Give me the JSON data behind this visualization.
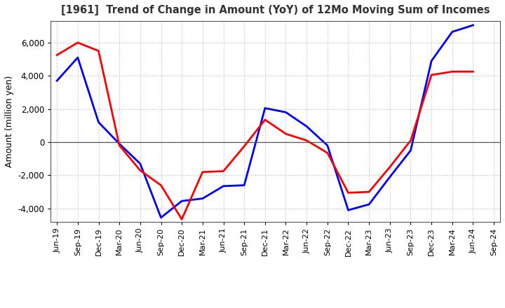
{
  "title": "[1961]  Trend of Change in Amount (YoY) of 12Mo Moving Sum of Incomes",
  "ylabel": "Amount (million yen)",
  "x_labels": [
    "Jun-19",
    "Sep-19",
    "Dec-19",
    "Mar-20",
    "Jun-20",
    "Sep-20",
    "Dec-20",
    "Mar-21",
    "Jun-21",
    "Sep-21",
    "Dec-21",
    "Mar-22",
    "Jun-22",
    "Sep-22",
    "Dec-22",
    "Mar-23",
    "Jun-23",
    "Sep-23",
    "Dec-23",
    "Mar-24",
    "Jun-24",
    "Sep-24"
  ],
  "ordinary_income": [
    3700,
    5100,
    1200,
    -100,
    -1300,
    -4550,
    -3550,
    -3400,
    -2650,
    -2600,
    2050,
    1800,
    950,
    -200,
    -4100,
    -3750,
    -2100,
    -500,
    4900,
    6650,
    7050,
    null
  ],
  "net_income": [
    5250,
    6000,
    5500,
    -200,
    -1700,
    -2600,
    -4650,
    -1800,
    -1750,
    -250,
    1350,
    500,
    100,
    -650,
    -3050,
    -3000,
    -1500,
    100,
    4050,
    4250,
    4250,
    null
  ],
  "ordinary_color": "#0000ff",
  "net_color": "#ff0000",
  "ylim": [
    -4800,
    7300
  ],
  "yticks": [
    -4000,
    -2000,
    0,
    2000,
    4000,
    6000
  ],
  "background_color": "#ffffff",
  "grid_color": "#bbbbbb"
}
